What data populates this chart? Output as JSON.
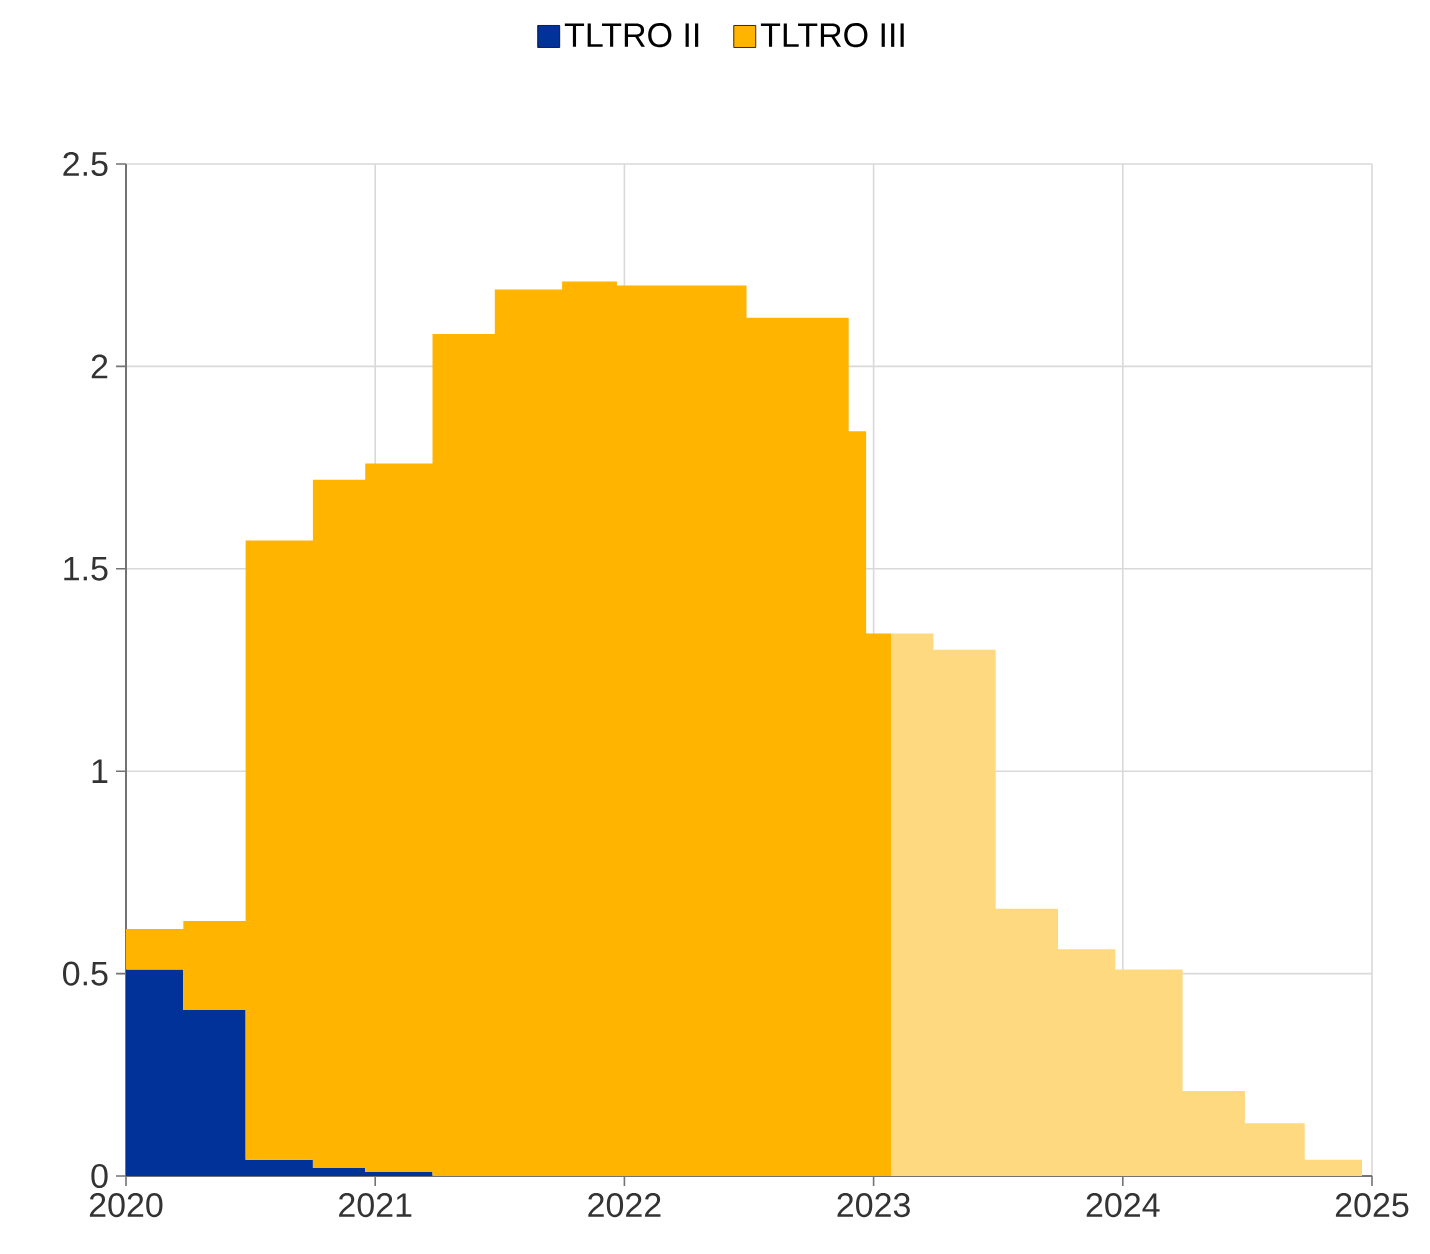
{
  "chart_data": {
    "type": "area",
    "stacked": true,
    "legend": "top",
    "grid": true,
    "x": [
      2020,
      2020.23,
      2020.23,
      2020.48,
      2020.48,
      2020.75,
      2020.75,
      2020.96,
      2020.96,
      2021.23,
      2021.23,
      2021.48,
      2021.48,
      2021.75,
      2021.75,
      2021.97,
      2021.97,
      2022.25,
      2022.25,
      2022.49,
      2022.49,
      2022.74,
      2022.74,
      2022.9,
      2022.9,
      2022.97,
      2022.97,
      2023.07,
      2023.07,
      2023.24,
      2023.24,
      2023.49,
      2023.49,
      2023.74,
      2023.74,
      2023.97,
      2023.97,
      2024.24,
      2024.24,
      2024.49,
      2024.49,
      2024.73,
      2024.73,
      2024.96
    ],
    "xlim": [
      2020,
      2025
    ],
    "xticks": [
      2020,
      2021,
      2022,
      2023,
      2024,
      2025
    ],
    "ylim": [
      0,
      2.5
    ],
    "yticks": [
      0,
      0.5,
      1,
      1.5,
      2,
      2.5
    ],
    "series": [
      {
        "name": "TLTRO II",
        "color": "#003299",
        "values": [
          0.51,
          0.51,
          0.41,
          0.41,
          0.04,
          0.04,
          0.02,
          0.02,
          0.01,
          0.01,
          0,
          0,
          0,
          0,
          0,
          0,
          0,
          0,
          0,
          0,
          0,
          0,
          0,
          0,
          0,
          0,
          0,
          0,
          null,
          null,
          null,
          null,
          null,
          null,
          null,
          null,
          null,
          null,
          null,
          null,
          null,
          null,
          null,
          null
        ]
      },
      {
        "name": "TLTRO III",
        "color": "#ffb400",
        "values": [
          0.1,
          0.1,
          0.22,
          0.22,
          1.53,
          1.53,
          1.7,
          1.7,
          1.75,
          1.75,
          2.08,
          2.08,
          2.19,
          2.19,
          2.21,
          2.21,
          2.2,
          2.2,
          2.2,
          2.2,
          2.12,
          2.12,
          2.12,
          2.12,
          1.84,
          1.84,
          1.34,
          1.34,
          null,
          null,
          null,
          null,
          null,
          null,
          null,
          null,
          null,
          null,
          null,
          null,
          null,
          null,
          null,
          null
        ]
      },
      {
        "color": "#ffd980",
        "values": [
          null,
          null,
          null,
          null,
          null,
          null,
          null,
          null,
          null,
          null,
          null,
          null,
          null,
          null,
          null,
          null,
          null,
          null,
          null,
          null,
          null,
          null,
          null,
          null,
          null,
          null,
          null,
          null,
          1.34,
          1.34,
          1.3,
          1.3,
          0.66,
          0.66,
          0.56,
          0.56,
          0.51,
          0.51,
          0.21,
          0.21,
          0.13,
          0.13,
          0.04,
          0.04
        ]
      }
    ]
  }
}
